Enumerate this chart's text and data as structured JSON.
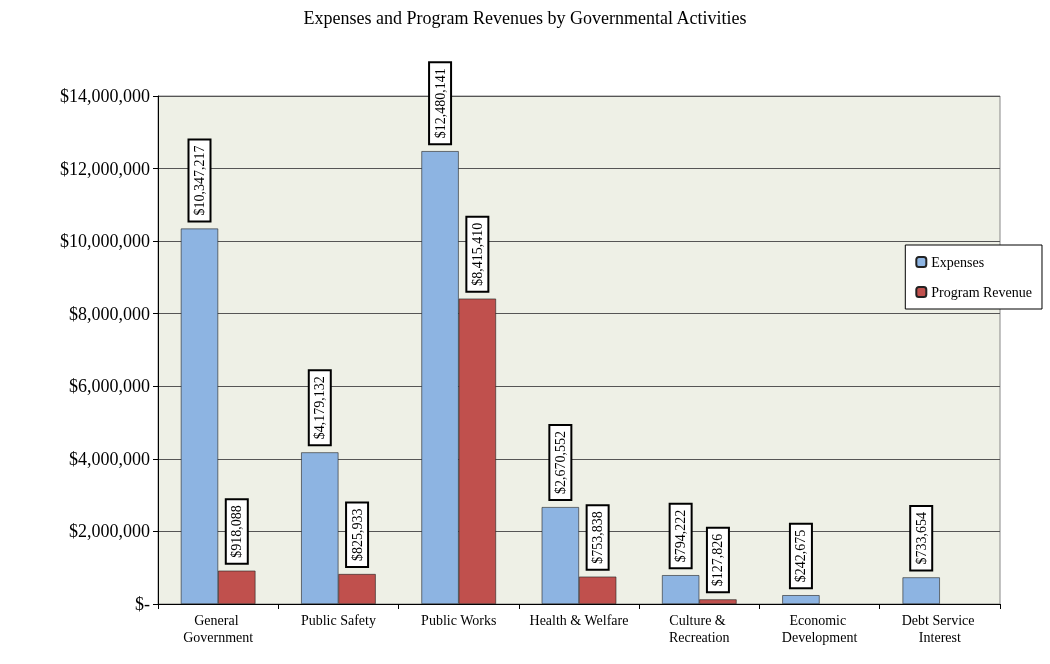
{
  "chart_data": {
    "type": "bar",
    "title": "Expenses and Program Revenues by Governmental Activities",
    "categories": [
      "General Government",
      "Public Safety",
      "Public Works",
      "Health & Welfare",
      "Culture & Recreation",
      "Economic Development",
      "Debt Service Interest"
    ],
    "series": [
      {
        "name": "Expenses",
        "color": "#8db4e2",
        "values": [
          10347217,
          4179132,
          12480141,
          2670552,
          794222,
          242675,
          733654
        ],
        "value_labels": [
          "$10,347,217",
          "$4,179,132",
          "$12,480,141",
          "$2,670,552",
          "$794,222",
          "$242,675",
          "$733,654"
        ]
      },
      {
        "name": "Program Revenue",
        "color": "#c0504d",
        "values": [
          918088,
          825933,
          8415410,
          753838,
          127826,
          null,
          null
        ],
        "value_labels": [
          "$918,088",
          "$825,933",
          "$8,415,410",
          "$753,838",
          "$127,826",
          null,
          null
        ]
      }
    ],
    "ylim": [
      0,
      14000000
    ],
    "yticks": [
      {
        "value": 0,
        "label": "$-"
      },
      {
        "value": 2000000,
        "label": "$2,000,000"
      },
      {
        "value": 4000000,
        "label": "$4,000,000"
      },
      {
        "value": 6000000,
        "label": "$6,000,000"
      },
      {
        "value": 8000000,
        "label": "$8,000,000"
      },
      {
        "value": 10000000,
        "label": "$10,000,000"
      },
      {
        "value": 12000000,
        "label": "$12,000,000"
      },
      {
        "value": 14000000,
        "label": "$14,000,000"
      }
    ],
    "grid": "y",
    "legend": "right"
  }
}
